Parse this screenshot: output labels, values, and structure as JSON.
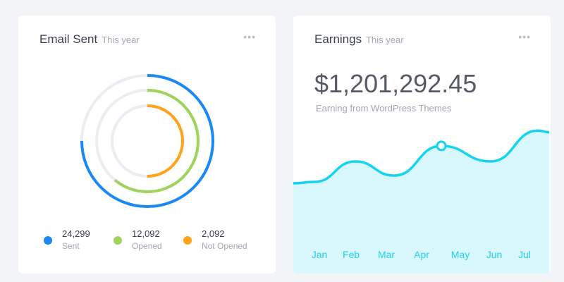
{
  "email": {
    "title": "Email Sent",
    "subtitle": "This year",
    "menu_icon": "more-horizontal-icon",
    "rings": [
      {
        "value": "24,299",
        "label": "Sent",
        "color": "#1a88f5",
        "fraction": 0.75
      },
      {
        "value": "12,092",
        "label": "Opened",
        "color": "#9fd35b",
        "fraction": 0.61
      },
      {
        "value": "2,092",
        "label": "Not Opened",
        "color": "#ffa31a",
        "fraction": 0.5
      }
    ],
    "track_color": "#ebedf2"
  },
  "earnings": {
    "title": "Earnings",
    "subtitle": "This year",
    "menu_icon": "more-horizontal-icon",
    "amount": "$1,201,292.45",
    "caption": "Earning from WordPress Themes"
  },
  "chart_data": {
    "type": "area",
    "categories": [
      "Jan",
      "Feb",
      "Mar",
      "Apr",
      "May",
      "Jun",
      "Jul"
    ],
    "points": [
      {
        "x": -0.74,
        "y": 56.5
      },
      {
        "x": -0.14,
        "y": 57.4
      },
      {
        "x": 1.02,
        "y": 70
      },
      {
        "x": 2.12,
        "y": 61.3
      },
      {
        "x": 3.46,
        "y": 79.6
      },
      {
        "x": 4.86,
        "y": 70
      },
      {
        "x": 6.2,
        "y": 89
      },
      {
        "x": 6.52,
        "y": 88
      }
    ],
    "highlight_x": 3.46,
    "ylim": [
      0,
      100
    ],
    "line_color": "#15d4ef",
    "fill_color": "#d8f8fd"
  }
}
